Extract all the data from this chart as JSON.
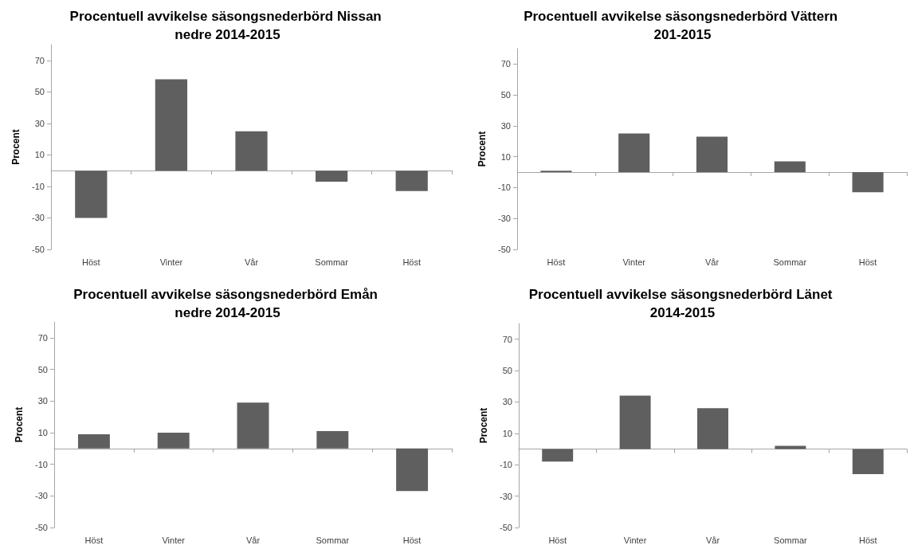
{
  "chart_data": [
    {
      "type": "bar",
      "title": "Procentuell avvikelse säsongsnederbörd Nissan nedre 2014-2015",
      "ylabel": "Procent",
      "categories": [
        "Höst",
        "Vinter",
        "Vår",
        "Sommar",
        "Höst"
      ],
      "values": [
        -30,
        58,
        25,
        -7,
        -13
      ],
      "color": "#5f5f5f",
      "ylim": [
        -50,
        80
      ],
      "yticks": [
        -50,
        -30,
        -10,
        10,
        30,
        50,
        70
      ]
    },
    {
      "type": "bar",
      "title": "Procentuell avvikelse säsongsnederbörd Vättern 201-2015",
      "ylabel": "Procent",
      "categories": [
        "Höst",
        "Vinter",
        "Vår",
        "Sommar",
        "Höst"
      ],
      "values": [
        1,
        25,
        23,
        7,
        -13
      ],
      "color": "#5f5f5f",
      "ylim": [
        -50,
        80
      ],
      "yticks": [
        -50,
        -30,
        -10,
        10,
        30,
        50,
        70
      ]
    },
    {
      "type": "bar",
      "title": "Procentuell avvikelse säsongsnederbörd Emån nedre 2014-2015",
      "ylabel": "Procent",
      "categories": [
        "Höst",
        "Vinter",
        "Vår",
        "Sommar",
        "Höst"
      ],
      "values": [
        9,
        10,
        29,
        11,
        -27
      ],
      "color": "#5f5f5f",
      "ylim": [
        -50,
        80
      ],
      "yticks": [
        -50,
        -30,
        -10,
        10,
        30,
        50,
        70
      ]
    },
    {
      "type": "bar",
      "title": "Procentuell avvikelse säsongsnederbörd Länet 2014-2015",
      "ylabel": "Procent",
      "categories": [
        "Höst",
        "Vinter",
        "Vår",
        "Sommar",
        "Höst"
      ],
      "values": [
        -8,
        34,
        26,
        2,
        -16
      ],
      "color": "#5f5f5f",
      "ylim": [
        -50,
        80
      ],
      "yticks": [
        -50,
        -30,
        -10,
        10,
        30,
        50,
        70
      ]
    }
  ]
}
